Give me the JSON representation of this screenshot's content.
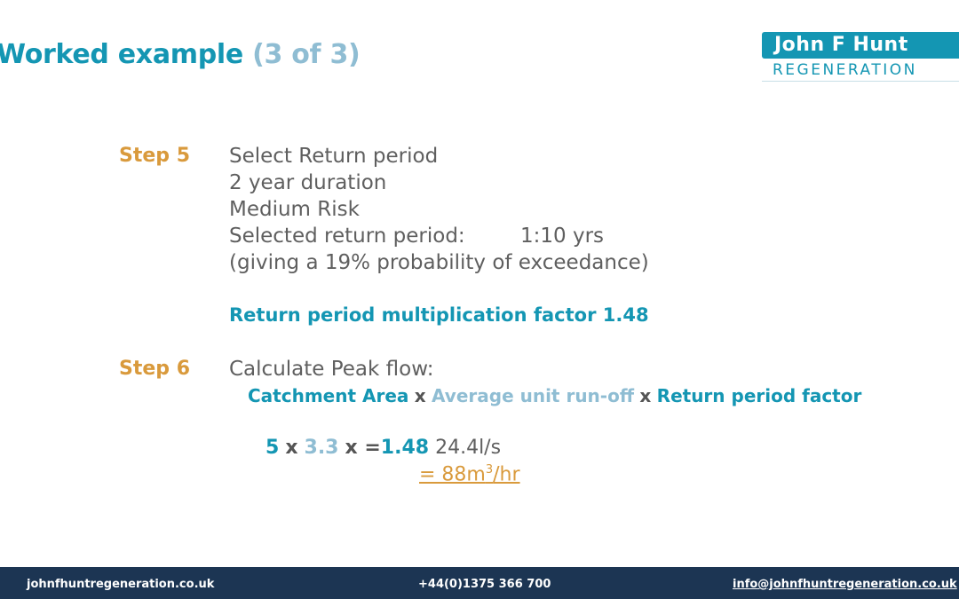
{
  "slide": {
    "title_main": "Worked example",
    "title_sub": "(3 of 3)"
  },
  "logo": {
    "name": "John F Hunt",
    "subtitle": "REGENERATION"
  },
  "step5": {
    "label": "Step 5",
    "lines": [
      "Select Return period",
      "2 year duration",
      "Medium Risk",
      "Selected return period:",
      "(giving a 19% probability of exceedance)"
    ],
    "return_period_value": "1:10 yrs",
    "factor_text": "Return period multiplication factor 1.48"
  },
  "step6": {
    "label": "Step 6",
    "line": "Calculate Peak flow:",
    "formula": {
      "term1": "Catchment Area",
      "op1": "x",
      "term2": "Average unit run-off",
      "op2": "x",
      "term3": "Return period factor"
    },
    "calc": {
      "v1": "5",
      "op1": "x",
      "v2": "3.3",
      "op2": "x =",
      "v3": "1.48",
      "result": "24.4l/s"
    },
    "result2_prefix": "= 88m",
    "result2_sup": "3",
    "result2_suffix": "/hr"
  },
  "footer": {
    "website": "johnfhuntregeneration.co.uk",
    "phone": "+44(0)1375 366 700",
    "email": "info@johnfhuntregeneration.co.uk"
  },
  "colors": {
    "teal": "#1496b3",
    "light_teal": "#8fbdd3",
    "orange": "#d99a3c",
    "footer_bg": "#1c3553"
  }
}
